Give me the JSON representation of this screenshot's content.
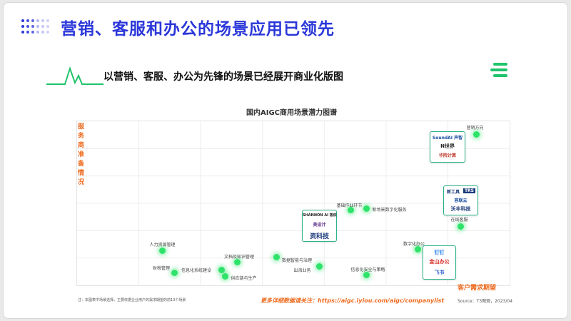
{
  "slide": {
    "title": "营销、客服和办公的场景应用已领先",
    "subtitle": "以营销、客服、办公为先锋的场景已经展开商业化版图"
  },
  "chart_data": {
    "type": "scatter",
    "title": "国内AIGC商用场景潜力图谱",
    "xlabel": "客户需求期望",
    "ylabel": "服务商准备情况",
    "points": [
      {
        "label": "营销方向",
        "x": 9.5,
        "y": 9.3
      },
      {
        "label": "基础作业环节",
        "x": 6.3,
        "y": 4.6
      },
      {
        "label": "新场景数字化服务",
        "x": 6.7,
        "y": 4.7
      },
      {
        "label": "在线客服",
        "x": 9.1,
        "y": 3.6
      },
      {
        "label": "数字化办公",
        "x": 8.0,
        "y": 2.2
      },
      {
        "label": "人力资源管理",
        "x": 1.5,
        "y": 2.1
      },
      {
        "label": "财税管理",
        "x": 1.8,
        "y": 0.7
      },
      {
        "label": "文档及知识管理",
        "x": 3.4,
        "y": 1.4
      },
      {
        "label": "信息化系统建设",
        "x": 3.0,
        "y": 0.9
      },
      {
        "label": "供应链与生产",
        "x": 3.1,
        "y": 0.5
      },
      {
        "label": "数据智能与治理",
        "x": 4.4,
        "y": 1.7
      },
      {
        "label": "出海业务",
        "x": 5.5,
        "y": 1.1
      },
      {
        "label": "信息化安全与策略",
        "x": 6.7,
        "y": 0.6
      }
    ]
  },
  "cards": {
    "marketing": [
      "SoundAI 声智",
      "N世界",
      "华院计算"
    ],
    "service": [
      "新工具",
      "TRS",
      "容联云",
      "沃丰科技"
    ],
    "middle": [
      "SHANNON AI 香侬",
      "美设计",
      "资科技"
    ],
    "office": [
      "钉钉",
      "金山办公",
      "飞书"
    ]
  },
  "footer": {
    "note": "注：本图表中场景选择，主要依据企业用户的需求期望的前13个场景",
    "more": "更多详细数据请关注：https://aigc.iyiou.com/aigc/companylist",
    "source": "Source：T3图观，2023/04"
  },
  "colors": {
    "title": "#2b37d9",
    "accent": "#ee6a1e",
    "dot": "#2fe36a",
    "brand_green": "#1fc46b"
  }
}
